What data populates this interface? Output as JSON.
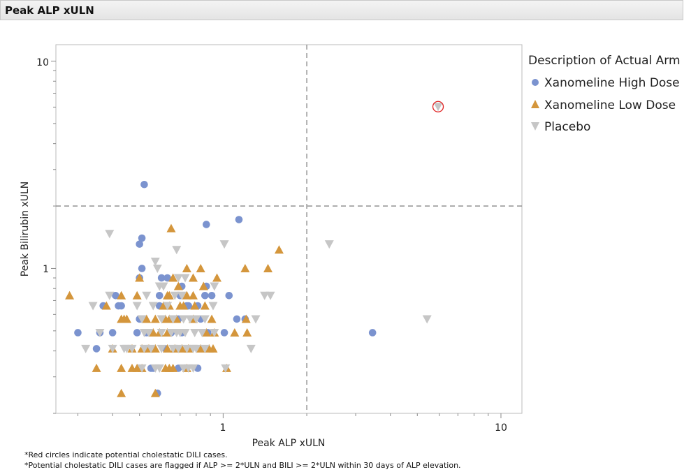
{
  "header": {
    "title": "Peak ALP xULN"
  },
  "chart_data": {
    "type": "scatter",
    "xlabel": "Peak ALP xULN",
    "ylabel": "Peak Bilirubin xULN",
    "x_scale": "log",
    "y_scale": "log",
    "xlim": [
      0.25,
      11.9
    ],
    "ylim": [
      0.2,
      12
    ],
    "x_ticks": [
      {
        "value": 1,
        "label": "1"
      },
      {
        "value": 10,
        "label": "10"
      }
    ],
    "y_ticks": [
      {
        "value": 1,
        "label": "1"
      },
      {
        "value": 10,
        "label": "10"
      }
    ],
    "reference_lines": {
      "x": 2,
      "y": 2,
      "style": "dashed"
    },
    "grid": false,
    "legend": {
      "title": "Description of Actual Arm",
      "placement": "right"
    },
    "series": [
      {
        "name": "Xanomeline High Dose",
        "marker": "circle",
        "color": "#7b93cf",
        "points": [
          [
            0.52,
            2.54
          ],
          [
            1.14,
            1.72
          ],
          [
            0.87,
            1.63
          ],
          [
            0.51,
            1.4
          ],
          [
            0.5,
            1.31
          ],
          [
            3.45,
            0.49
          ],
          [
            0.51,
            1.0
          ],
          [
            0.5,
            0.9
          ],
          [
            0.6,
            0.9
          ],
          [
            0.63,
            0.9
          ],
          [
            0.71,
            0.82
          ],
          [
            0.87,
            0.82
          ],
          [
            0.41,
            0.74
          ],
          [
            0.59,
            0.74
          ],
          [
            0.7,
            0.74
          ],
          [
            0.86,
            0.74
          ],
          [
            0.91,
            0.74
          ],
          [
            1.05,
            0.74
          ],
          [
            0.37,
            0.66
          ],
          [
            0.42,
            0.66
          ],
          [
            0.43,
            0.66
          ],
          [
            0.59,
            0.66
          ],
          [
            0.75,
            0.66
          ],
          [
            0.81,
            0.66
          ],
          [
            0.74,
            0.66
          ],
          [
            0.5,
            0.57
          ],
          [
            0.69,
            0.57
          ],
          [
            0.83,
            0.57
          ],
          [
            1.12,
            0.57
          ],
          [
            1.2,
            0.57
          ],
          [
            0.51,
            0.57
          ],
          [
            0.3,
            0.49
          ],
          [
            0.36,
            0.49
          ],
          [
            0.4,
            0.49
          ],
          [
            0.49,
            0.49
          ],
          [
            0.65,
            0.49
          ],
          [
            0.71,
            0.49
          ],
          [
            0.88,
            0.49
          ],
          [
            1.01,
            0.49
          ],
          [
            0.64,
            0.49
          ],
          [
            0.53,
            0.49
          ],
          [
            0.35,
            0.41
          ],
          [
            0.62,
            0.41
          ],
          [
            0.56,
            0.33
          ],
          [
            0.69,
            0.33
          ],
          [
            0.81,
            0.33
          ],
          [
            0.55,
            0.33
          ],
          [
            0.58,
            0.25
          ]
        ]
      },
      {
        "name": "Xanomeline Low Dose",
        "marker": "triangle-up",
        "color": "#d4963c",
        "points": [
          [
            0.65,
            1.56
          ],
          [
            1.59,
            1.23
          ],
          [
            0.28,
            0.74
          ],
          [
            0.74,
            1.0
          ],
          [
            0.83,
            1.0
          ],
          [
            1.2,
            1.0
          ],
          [
            1.45,
            1.0
          ],
          [
            0.5,
            0.9
          ],
          [
            0.66,
            0.9
          ],
          [
            0.78,
            0.9
          ],
          [
            0.95,
            0.9
          ],
          [
            0.69,
            0.82
          ],
          [
            0.85,
            0.82
          ],
          [
            0.43,
            0.74
          ],
          [
            0.49,
            0.74
          ],
          [
            0.63,
            0.74
          ],
          [
            0.64,
            0.74
          ],
          [
            0.74,
            0.74
          ],
          [
            0.78,
            0.74
          ],
          [
            0.38,
            0.66
          ],
          [
            0.61,
            0.66
          ],
          [
            0.64,
            0.66
          ],
          [
            0.72,
            0.66
          ],
          [
            0.7,
            0.66
          ],
          [
            0.79,
            0.66
          ],
          [
            0.86,
            0.66
          ],
          [
            0.43,
            0.57
          ],
          [
            0.44,
            0.57
          ],
          [
            0.45,
            0.57
          ],
          [
            0.53,
            0.57
          ],
          [
            0.57,
            0.57
          ],
          [
            0.62,
            0.57
          ],
          [
            0.64,
            0.57
          ],
          [
            0.68,
            0.57
          ],
          [
            0.78,
            0.57
          ],
          [
            0.91,
            0.57
          ],
          [
            1.21,
            0.57
          ],
          [
            0.56,
            0.49
          ],
          [
            0.59,
            0.49
          ],
          [
            0.63,
            0.49
          ],
          [
            0.87,
            0.49
          ],
          [
            0.93,
            0.49
          ],
          [
            1.1,
            0.49
          ],
          [
            1.22,
            0.49
          ],
          [
            0.4,
            0.41
          ],
          [
            0.47,
            0.41
          ],
          [
            0.51,
            0.41
          ],
          [
            0.54,
            0.41
          ],
          [
            0.57,
            0.41
          ],
          [
            0.63,
            0.41
          ],
          [
            0.67,
            0.41
          ],
          [
            0.71,
            0.41
          ],
          [
            0.75,
            0.41
          ],
          [
            0.83,
            0.41
          ],
          [
            0.89,
            0.41
          ],
          [
            0.92,
            0.41
          ],
          [
            0.35,
            0.33
          ],
          [
            0.43,
            0.33
          ],
          [
            0.47,
            0.33
          ],
          [
            0.49,
            0.33
          ],
          [
            0.51,
            0.33
          ],
          [
            0.62,
            0.33
          ],
          [
            0.64,
            0.33
          ],
          [
            0.66,
            0.33
          ],
          [
            0.74,
            0.33
          ],
          [
            1.03,
            0.33
          ],
          [
            0.43,
            0.25
          ],
          [
            0.57,
            0.25
          ]
        ]
      },
      {
        "name": "Placebo",
        "marker": "triangle-down",
        "color": "#c6c6c6",
        "points": [
          [
            5.94,
            6.03
          ],
          [
            0.39,
            1.47
          ],
          [
            0.68,
            1.23
          ],
          [
            1.01,
            1.31
          ],
          [
            2.41,
            1.31
          ],
          [
            5.42,
            0.57
          ],
          [
            0.58,
            1.0
          ],
          [
            0.57,
            1.08
          ],
          [
            0.69,
            0.9
          ],
          [
            0.73,
            0.9
          ],
          [
            0.59,
            0.82
          ],
          [
            0.61,
            0.82
          ],
          [
            0.93,
            0.82
          ],
          [
            0.39,
            0.74
          ],
          [
            0.53,
            0.74
          ],
          [
            0.67,
            0.74
          ],
          [
            0.71,
            0.74
          ],
          [
            1.41,
            0.74
          ],
          [
            1.48,
            0.74
          ],
          [
            0.34,
            0.66
          ],
          [
            0.49,
            0.66
          ],
          [
            0.56,
            0.66
          ],
          [
            0.63,
            0.66
          ],
          [
            0.92,
            0.66
          ],
          [
            0.51,
            0.57
          ],
          [
            0.6,
            0.57
          ],
          [
            0.66,
            0.57
          ],
          [
            0.72,
            0.57
          ],
          [
            0.76,
            0.57
          ],
          [
            0.8,
            0.57
          ],
          [
            0.86,
            0.57
          ],
          [
            1.31,
            0.57
          ],
          [
            0.36,
            0.49
          ],
          [
            0.52,
            0.49
          ],
          [
            0.54,
            0.49
          ],
          [
            0.6,
            0.49
          ],
          [
            0.65,
            0.49
          ],
          [
            0.68,
            0.49
          ],
          [
            0.7,
            0.49
          ],
          [
            0.73,
            0.49
          ],
          [
            0.79,
            0.49
          ],
          [
            0.84,
            0.49
          ],
          [
            0.93,
            0.49
          ],
          [
            0.32,
            0.41
          ],
          [
            0.4,
            0.41
          ],
          [
            0.44,
            0.41
          ],
          [
            0.47,
            0.41
          ],
          [
            0.45,
            0.41
          ],
          [
            0.52,
            0.41
          ],
          [
            0.55,
            0.41
          ],
          [
            0.6,
            0.41
          ],
          [
            0.66,
            0.41
          ],
          [
            0.69,
            0.41
          ],
          [
            0.74,
            0.41
          ],
          [
            0.78,
            0.41
          ],
          [
            0.8,
            0.41
          ],
          [
            0.86,
            0.41
          ],
          [
            1.26,
            0.41
          ],
          [
            0.51,
            0.33
          ],
          [
            0.57,
            0.33
          ],
          [
            0.59,
            0.33
          ],
          [
            0.72,
            0.33
          ],
          [
            0.75,
            0.33
          ],
          [
            0.78,
            0.33
          ],
          [
            1.02,
            0.33
          ]
        ]
      }
    ],
    "flagged_points": [
      {
        "series": "Placebo",
        "x": 5.94,
        "y": 6.03,
        "highlight_color": "#e02020"
      }
    ],
    "annotations": [
      "*Red circles indicate potential cholestatic DILI cases.",
      "*Potential cholestatic DILI cases are flagged if ALP >= 2*ULN and BILI >= 2*ULN within 30 days of ALP elevation."
    ]
  }
}
